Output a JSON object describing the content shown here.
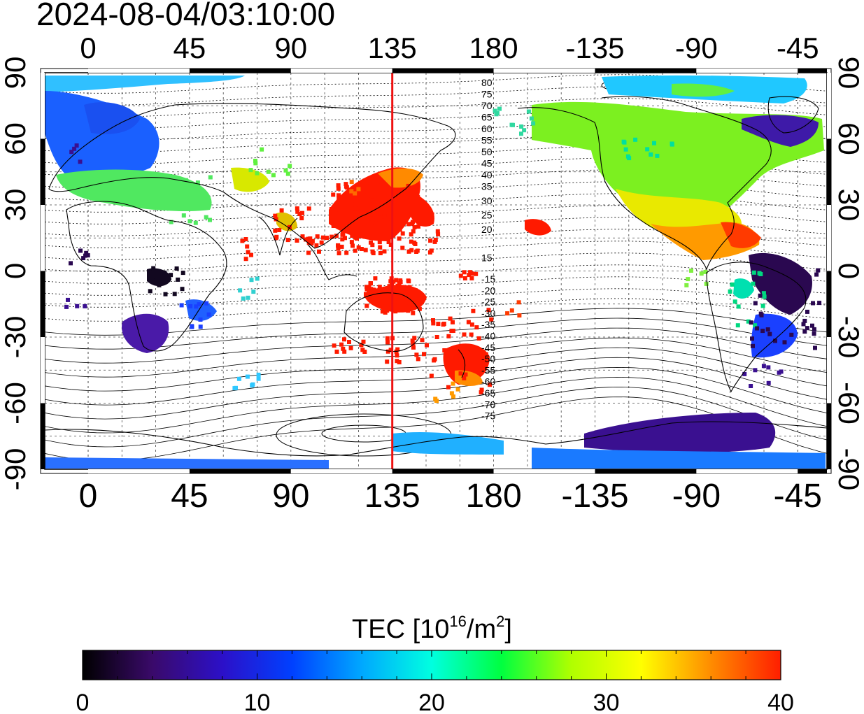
{
  "header": {
    "timestamp": "2024-08-04/03:10:00"
  },
  "map": {
    "lon_ticks": [
      "0",
      "45",
      "90",
      "135",
      "180",
      "-135",
      "-90",
      "-45"
    ],
    "lat_ticks": [
      "90",
      "60",
      "30",
      "0",
      "-30",
      "-60",
      "-90"
    ],
    "marker_longitude": 135,
    "marker_color": "#ee1111",
    "inclination_labels_north": [
      "80",
      "75",
      "70",
      "65",
      "60",
      "55",
      "50",
      "45",
      "40",
      "35",
      "30",
      "25",
      "20",
      "15"
    ],
    "inclination_labels_south": [
      "-15",
      "-20",
      "-25",
      "-30",
      "-35",
      "-40",
      "-45",
      "-50",
      "-55",
      "-60",
      "-65",
      "-70",
      "-75"
    ]
  },
  "colorbar": {
    "label_prefix": "TEC  [10",
    "label_exponent": "16",
    "label_mid": "/m",
    "label_exponent2": "2",
    "label_suffix": "]",
    "min": 0,
    "max": 40,
    "tick_labels": [
      "0",
      "10",
      "20",
      "30",
      "40"
    ],
    "colors": [
      "#000000",
      "#3a0a6a",
      "#2c10c8",
      "#0040ff",
      "#00a8ff",
      "#00ffe0",
      "#00ff40",
      "#b0ff00",
      "#ffff00",
      "#ff8c00",
      "#ff1e00"
    ]
  }
}
